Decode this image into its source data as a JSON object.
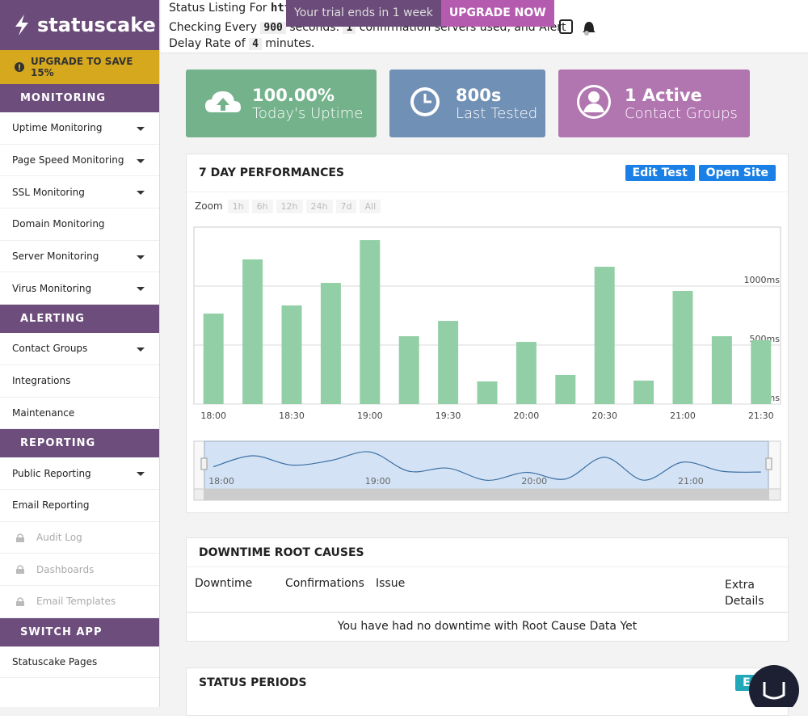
{
  "header": {
    "status_prefix": "Status Listing For",
    "url": "https:/",
    "checking": "Checking Every",
    "interval": 900,
    "seconds_text": "seconds.",
    "servers": 1,
    "servers_text": "confirmation servers used, and Alert",
    "delay_prefix": "Delay Rate of",
    "delay": 4,
    "delay_suffix": "minutes.",
    "trial_text": "Your trial ends in 1 week",
    "trial_button": "UPGRADE NOW"
  },
  "sidebar": {
    "logo": "statuscake",
    "upgrade": "UPGRADE TO SAVE 15%",
    "sections": [
      {
        "title": "MONITORING",
        "items": [
          {
            "label": "Uptime Monitoring",
            "dropdown": true
          },
          {
            "label": "Page Speed Monitoring",
            "dropdown": true
          },
          {
            "label": "SSL Monitoring",
            "dropdown": true
          },
          {
            "label": "Domain Monitoring"
          },
          {
            "label": "Server Monitoring",
            "dropdown": true
          },
          {
            "label": "Virus Monitoring",
            "dropdown": true
          }
        ]
      },
      {
        "title": "ALERTING",
        "items": [
          {
            "label": "Contact Groups",
            "dropdown": true
          },
          {
            "label": "Integrations"
          },
          {
            "label": "Maintenance"
          }
        ]
      },
      {
        "title": "REPORTING",
        "items": [
          {
            "label": "Public Reporting",
            "dropdown": true
          },
          {
            "label": "Email Reporting"
          },
          {
            "label": "Audit Log",
            "locked": true
          },
          {
            "label": "Dashboards",
            "locked": true
          },
          {
            "label": "Email Templates",
            "locked": true
          }
        ]
      },
      {
        "title": "SWITCH APP",
        "items": [
          {
            "label": "Statuscake Pages"
          }
        ]
      }
    ]
  },
  "cards": [
    {
      "value": "100.00%",
      "label": "Today's Uptime",
      "color": "#74b28b"
    },
    {
      "value": "800s",
      "label": "Last Tested",
      "color": "#7190b5"
    },
    {
      "value": "1 Active",
      "label": "Contact Groups",
      "color": "#b175b0"
    }
  ],
  "performance": {
    "title": "7 DAY PERFORMANCES",
    "buttons": [
      "Edit Test",
      "Open Site"
    ],
    "zoom_label": "Zoom",
    "zoom_options": [
      "1h",
      "6h",
      "12h",
      "24h",
      "7d",
      "All"
    ]
  },
  "chart_data": {
    "type": "bar",
    "color": "#93cfa6",
    "categories": [
      "18:00",
      null,
      "18:30",
      null,
      "19:00",
      null,
      "19:30",
      null,
      "20:00",
      null,
      "20:30",
      null,
      "21:00",
      null,
      "21:30"
    ],
    "values": [
      767,
      1226,
      836,
      1027,
      1390,
      575,
      705,
      192,
      527,
      247,
      1164,
      199,
      959,
      575,
      541
    ],
    "ylim": [
      0,
      1500
    ],
    "yticks": [
      {
        "value": 0,
        "label": "0ms"
      },
      {
        "value": 500,
        "label": "500ms"
      },
      {
        "value": 1000,
        "label": "1000ms"
      }
    ],
    "grid": true,
    "navigator_labels": [
      "18:00",
      "19:00",
      "20:00",
      "21:00"
    ]
  },
  "downtime": {
    "title": "DOWNTIME ROOT CAUSES",
    "columns": [
      "Downtime",
      "Confirmations",
      "Issue",
      "Extra Details"
    ],
    "empty": "You have had no downtime with Root Cause Data Yet"
  },
  "status_periods": {
    "title": "STATUS PERIODS",
    "button": "Export"
  }
}
